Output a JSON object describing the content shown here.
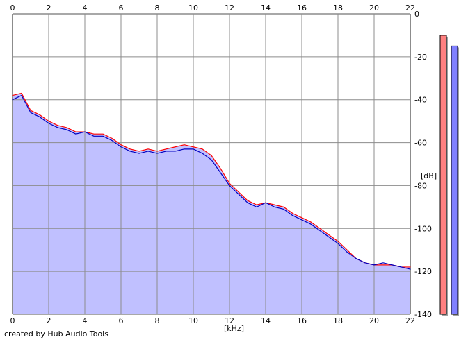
{
  "chart_data": {
    "type": "area",
    "xlabel": "[kHz]",
    "ylabel": "[dB]",
    "xlim": [
      0,
      22
    ],
    "ylim": [
      -140,
      0
    ],
    "x_ticks": [
      "0",
      "2",
      "4",
      "6",
      "8",
      "10",
      "12",
      "14",
      "16",
      "18",
      "20",
      "22"
    ],
    "y_ticks": [
      "0",
      "-20",
      "-40",
      "-60",
      "-80",
      "-100",
      "-120",
      "-140"
    ],
    "grid": true,
    "series": [
      {
        "color": "#ff0000",
        "x": [
          0,
          0.5,
          1,
          1.5,
          2,
          2.5,
          3,
          3.5,
          4,
          4.5,
          5,
          5.5,
          6,
          6.5,
          7,
          7.5,
          8,
          8.5,
          9,
          9.5,
          10,
          10.5,
          11,
          11.5,
          12,
          12.5,
          13,
          13.5,
          14,
          14.5,
          15,
          15.5,
          16,
          16.5,
          17,
          17.5,
          18,
          18.5,
          19,
          19.5,
          20,
          20.5,
          21,
          21.5,
          22
        ],
        "values": [
          -38,
          -37,
          -45,
          -47,
          -50,
          -52,
          -53,
          -55,
          -55,
          -56,
          -56,
          -58,
          -61,
          -63,
          -64,
          -63,
          -64,
          -63,
          -62,
          -61,
          -62,
          -63,
          -66,
          -72,
          -79,
          -83,
          -87,
          -89,
          -88,
          -89,
          -90,
          -93,
          -95,
          -97,
          -100,
          -103,
          -106,
          -110,
          -114,
          -116,
          -117,
          -117,
          -117,
          -118,
          -118
        ]
      },
      {
        "color": "#0000c0",
        "x": [
          0,
          0.5,
          1,
          1.5,
          2,
          2.5,
          3,
          3.5,
          4,
          4.5,
          5,
          5.5,
          6,
          6.5,
          7,
          7.5,
          8,
          8.5,
          9,
          9.5,
          10,
          10.5,
          11,
          11.5,
          12,
          12.5,
          13,
          13.5,
          14,
          14.5,
          15,
          15.5,
          16,
          16.5,
          17,
          17.5,
          18,
          18.5,
          19,
          19.5,
          20,
          20.5,
          21,
          21.5,
          22
        ],
        "values": [
          -40,
          -38,
          -46,
          -48,
          -51,
          -53,
          -54,
          -56,
          -55,
          -57,
          -57,
          -59,
          -62,
          -64,
          -65,
          -64,
          -65,
          -64,
          -64,
          -63,
          -63,
          -65,
          -68,
          -74,
          -80,
          -84,
          -88,
          -90,
          -88,
          -90,
          -91,
          -94,
          -96,
          -98,
          -101,
          -104,
          -107,
          -111,
          -114,
          -116,
          -117,
          -116,
          -117,
          -118,
          -119
        ]
      }
    ],
    "levels": {
      "left": -10,
      "right": -15,
      "left_color": "#ff8080",
      "right_color": "#8080ff"
    }
  },
  "footer": {
    "credit": "created by Hub Audio Tools"
  }
}
